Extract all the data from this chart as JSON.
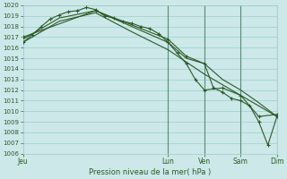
{
  "xlabel": "Pression niveau de la mer( hPa )",
  "bg_color": "#cce8e8",
  "grid_color": "#9dcece",
  "line_color": "#2d5a27",
  "vline_color": "#5a8a7a",
  "ylim": [
    1006,
    1020
  ],
  "xlim": [
    0,
    168
  ],
  "yticks": [
    1006,
    1007,
    1008,
    1009,
    1010,
    1011,
    1012,
    1013,
    1014,
    1015,
    1016,
    1017,
    1018,
    1019,
    1020
  ],
  "xtick_positions": [
    0,
    96,
    120,
    144,
    168
  ],
  "xtick_labels": [
    "Jeu",
    "Lun",
    "Ven",
    "Sam",
    "Dim"
  ],
  "vlines": [
    96,
    120,
    144,
    168
  ],
  "line1_x": [
    0,
    6,
    12,
    18,
    24,
    30,
    36,
    42,
    48,
    54,
    60,
    66,
    72,
    78,
    84,
    90,
    96,
    102,
    108,
    114,
    120,
    132,
    144,
    156,
    168
  ],
  "line1_y": [
    1016.5,
    1017.2,
    1018.0,
    1018.7,
    1019.1,
    1019.4,
    1019.5,
    1019.8,
    1019.6,
    1019.0,
    1018.8,
    1018.5,
    1018.3,
    1018.0,
    1017.8,
    1017.3,
    1016.5,
    1015.5,
    1014.5,
    1013.0,
    1012.0,
    1012.2,
    1011.5,
    1009.5,
    1009.7
  ],
  "line2_x": [
    0,
    24,
    48,
    72,
    96,
    108,
    120,
    132,
    144,
    156,
    168
  ],
  "line2_y": [
    1016.8,
    1018.8,
    1019.5,
    1018.0,
    1016.5,
    1015.0,
    1014.5,
    1013.0,
    1012.0,
    1010.8,
    1009.5
  ],
  "line3_x": [
    0,
    48,
    96,
    108,
    120,
    126,
    132,
    138,
    144,
    150,
    156,
    162,
    168
  ],
  "line3_y": [
    1017.0,
    1019.5,
    1016.8,
    1015.2,
    1014.5,
    1012.2,
    1011.8,
    1011.2,
    1011.0,
    1010.5,
    1009.0,
    1006.8,
    1009.5
  ],
  "line4_x": [
    0,
    24,
    48,
    72,
    96,
    120,
    168
  ],
  "line4_y": [
    1016.5,
    1018.5,
    1019.3,
    1017.5,
    1015.8,
    1013.5,
    1009.5
  ]
}
